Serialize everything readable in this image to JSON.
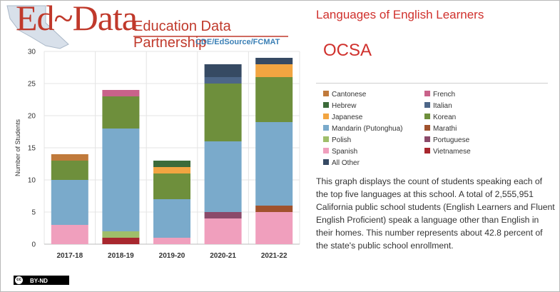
{
  "logo": {
    "brand": "Ed~Data",
    "tagline": "Education Data Partnership",
    "subline": "CDE/EdSource/FCMAT"
  },
  "header": {
    "title": "Languages of English Learners",
    "school": "OCSA"
  },
  "legend": [
    {
      "label": "Cantonese",
      "color": "#c07a3b"
    },
    {
      "label": "French",
      "color": "#c9628a"
    },
    {
      "label": "Hebrew",
      "color": "#3c6b3a"
    },
    {
      "label": "Italian",
      "color": "#4d6688"
    },
    {
      "label": "Japanese",
      "color": "#f2a541"
    },
    {
      "label": "Korean",
      "color": "#6e8f3c"
    },
    {
      "label": "Mandarin (Putonghua)",
      "color": "#7aaacb"
    },
    {
      "label": "Marathi",
      "color": "#a0522d"
    },
    {
      "label": "Polish",
      "color": "#9fbe6a"
    },
    {
      "label": "Portuguese",
      "color": "#8b4a6a"
    },
    {
      "label": "Spanish",
      "color": "#f09fbd"
    },
    {
      "label": "Vietnamese",
      "color": "#a8272e"
    },
    {
      "label": "All Other",
      "color": "#364a63"
    }
  ],
  "description": "This graph displays the count of students speaking each of the top five languages at this school. A total of 2,555,951 California public school students (English Learners and Fluent English Proficient) speak a language other than English in their homes. This number represents about 42.8 percent of the state's public school enrollment.",
  "license": "BY-ND",
  "license_mark": "cc",
  "chart_data": {
    "type": "bar",
    "stacked": true,
    "categories": [
      "2017-18",
      "2018-19",
      "2019-20",
      "2020-21",
      "2021-22"
    ],
    "ylabel": "Number of Students",
    "xlabel": "",
    "ylim": [
      0,
      30
    ],
    "yticks": [
      0,
      5,
      10,
      15,
      20,
      25,
      30
    ],
    "grid": true,
    "series": [
      {
        "name": "Spanish",
        "color": "#f09fbd",
        "values": [
          3,
          0,
          1,
          4,
          5
        ]
      },
      {
        "name": "Vietnamese",
        "color": "#a8272e",
        "values": [
          0,
          1,
          0,
          0,
          0
        ]
      },
      {
        "name": "Polish",
        "color": "#9fbe6a",
        "values": [
          0,
          1,
          0,
          0,
          0
        ]
      },
      {
        "name": "Portuguese",
        "color": "#8b4a6a",
        "values": [
          0,
          0,
          0,
          1,
          0
        ]
      },
      {
        "name": "Marathi",
        "color": "#a0522d",
        "values": [
          0,
          0,
          0,
          0,
          1
        ]
      },
      {
        "name": "Mandarin (Putonghua)",
        "color": "#7aaacb",
        "values": [
          7,
          16,
          6,
          11,
          13
        ]
      },
      {
        "name": "Korean",
        "color": "#6e8f3c",
        "values": [
          3,
          5,
          4,
          9,
          7
        ]
      },
      {
        "name": "Cantonese",
        "color": "#c07a3b",
        "values": [
          1,
          0,
          0,
          0,
          0
        ]
      },
      {
        "name": "French",
        "color": "#c9628a",
        "values": [
          0,
          1,
          0,
          0,
          0
        ]
      },
      {
        "name": "Japanese",
        "color": "#f2a541",
        "values": [
          0,
          0,
          1,
          0,
          2
        ]
      },
      {
        "name": "Hebrew",
        "color": "#3c6b3a",
        "values": [
          0,
          0,
          1,
          0,
          0
        ]
      },
      {
        "name": "Italian",
        "color": "#4d6688",
        "values": [
          0,
          0,
          0,
          1,
          0
        ]
      },
      {
        "name": "All Other",
        "color": "#364a63",
        "values": [
          0,
          0,
          0,
          2,
          1
        ]
      }
    ]
  }
}
